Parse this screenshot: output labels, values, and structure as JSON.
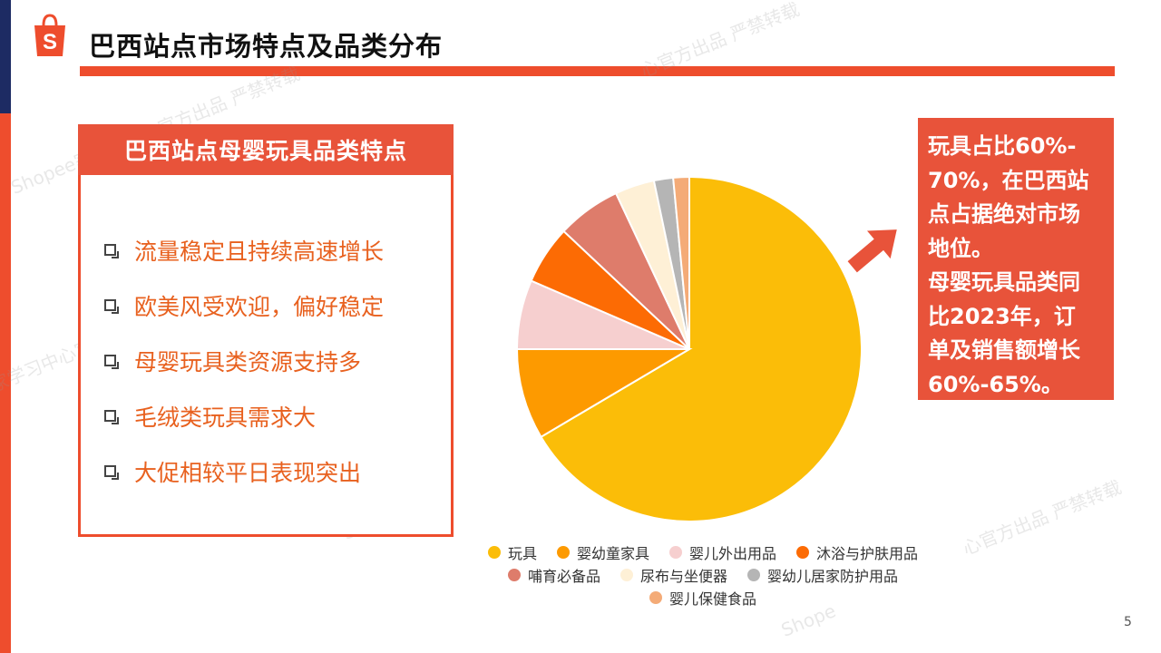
{
  "header": {
    "title": "巴西站点市场特点及品类分布"
  },
  "watermarks": [
    "Shopee家学习中心官方出品 严禁转载",
    "心官方出品 严禁转载",
    "家学习中心官方出品 严禁转载",
    "Shopee家",
    "心官方出品 严禁转载",
    "Shope"
  ],
  "features": {
    "title": "巴西站点母婴玩具品类特点",
    "items": [
      "流量稳定且持续高速增长",
      "欧美风受欢迎，偏好稳定",
      "母婴玩具类资源支持多",
      "毛绒类玩具需求大",
      "大促相较平日表现突出"
    ]
  },
  "chart_data": {
    "type": "pie",
    "title": "",
    "start_angle_deg": 0,
    "direction": "clockwise",
    "legend_position": "bottom",
    "series": [
      {
        "name": "玩具",
        "value": 66.5,
        "color": "#fbbd08"
      },
      {
        "name": "婴幼童家具",
        "value": 8.5,
        "color": "#fd9a00"
      },
      {
        "name": "婴儿外出用品",
        "value": 6.5,
        "color": "#f6cfcf"
      },
      {
        "name": "沐浴与护肤用品",
        "value": 5.5,
        "color": "#fc6b04"
      },
      {
        "name": "哺育必备品",
        "value": 6.0,
        "color": "#de7c6b"
      },
      {
        "name": "尿布与坐便器",
        "value": 3.7,
        "color": "#fef0d6"
      },
      {
        "name": "婴幼儿居家防护用品",
        "value": 1.8,
        "color": "#b5b5b5"
      },
      {
        "name": "婴儿保健食品",
        "value": 1.5,
        "color": "#f4ab77"
      }
    ]
  },
  "info": {
    "lines": [
      "玩具占比60%-",
      "70%，在巴西站",
      "点占据绝对市场",
      "地位。",
      "母婴玩具品类同",
      "比2023年，订",
      "单及销售额增长",
      "60%-65%。"
    ]
  },
  "footer": {
    "page_number": "5"
  }
}
